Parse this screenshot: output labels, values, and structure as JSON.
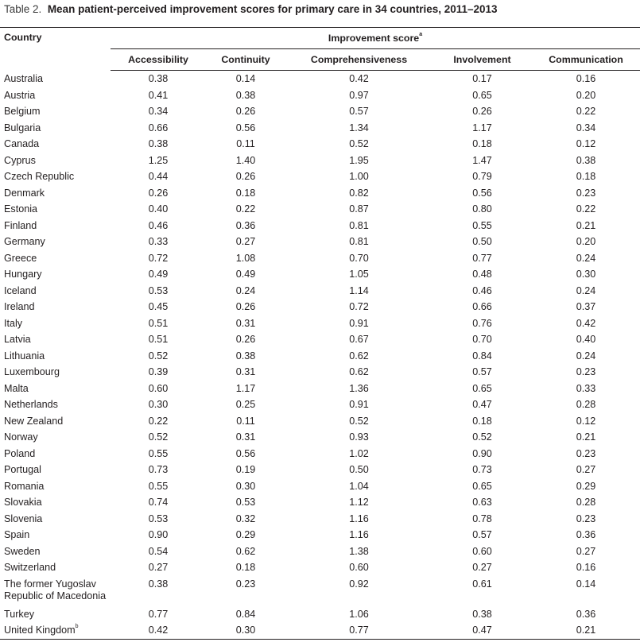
{
  "caption": {
    "label": "Table 2.",
    "title": "Mean patient-perceived improvement scores for primary care in 34 countries, 2011–2013"
  },
  "header": {
    "country": "Country",
    "group": "Improvement score",
    "group_note": "a",
    "columns": [
      "Accessibility",
      "Continuity",
      "Comprehensiveness",
      "Involvement",
      "Communication"
    ]
  },
  "rows": [
    {
      "country": "Australia",
      "values": [
        "0.38",
        "0.14",
        "0.42",
        "0.17",
        "0.16"
      ]
    },
    {
      "country": "Austria",
      "values": [
        "0.41",
        "0.38",
        "0.97",
        "0.65",
        "0.20"
      ]
    },
    {
      "country": "Belgium",
      "values": [
        "0.34",
        "0.26",
        "0.57",
        "0.26",
        "0.22"
      ]
    },
    {
      "country": "Bulgaria",
      "values": [
        "0.66",
        "0.56",
        "1.34",
        "1.17",
        "0.34"
      ]
    },
    {
      "country": "Canada",
      "values": [
        "0.38",
        "0.11",
        "0.52",
        "0.18",
        "0.12"
      ]
    },
    {
      "country": "Cyprus",
      "values": [
        "1.25",
        "1.40",
        "1.95",
        "1.47",
        "0.38"
      ]
    },
    {
      "country": "Czech Republic",
      "values": [
        "0.44",
        "0.26",
        "1.00",
        "0.79",
        "0.18"
      ]
    },
    {
      "country": "Denmark",
      "values": [
        "0.26",
        "0.18",
        "0.82",
        "0.56",
        "0.23"
      ]
    },
    {
      "country": "Estonia",
      "values": [
        "0.40",
        "0.22",
        "0.87",
        "0.80",
        "0.22"
      ]
    },
    {
      "country": "Finland",
      "values": [
        "0.46",
        "0.36",
        "0.81",
        "0.55",
        "0.21"
      ]
    },
    {
      "country": "Germany",
      "values": [
        "0.33",
        "0.27",
        "0.81",
        "0.50",
        "0.20"
      ]
    },
    {
      "country": "Greece",
      "values": [
        "0.72",
        "1.08",
        "0.70",
        "0.77",
        "0.24"
      ]
    },
    {
      "country": "Hungary",
      "values": [
        "0.49",
        "0.49",
        "1.05",
        "0.48",
        "0.30"
      ]
    },
    {
      "country": "Iceland",
      "values": [
        "0.53",
        "0.24",
        "1.14",
        "0.46",
        "0.24"
      ]
    },
    {
      "country": "Ireland",
      "values": [
        "0.45",
        "0.26",
        "0.72",
        "0.66",
        "0.37"
      ]
    },
    {
      "country": "Italy",
      "values": [
        "0.51",
        "0.31",
        "0.91",
        "0.76",
        "0.42"
      ]
    },
    {
      "country": "Latvia",
      "values": [
        "0.51",
        "0.26",
        "0.67",
        "0.70",
        "0.40"
      ]
    },
    {
      "country": "Lithuania",
      "values": [
        "0.52",
        "0.38",
        "0.62",
        "0.84",
        "0.24"
      ]
    },
    {
      "country": "Luxembourg",
      "values": [
        "0.39",
        "0.31",
        "0.62",
        "0.57",
        "0.23"
      ]
    },
    {
      "country": "Malta",
      "values": [
        "0.60",
        "1.17",
        "1.36",
        "0.65",
        "0.33"
      ]
    },
    {
      "country": "Netherlands",
      "values": [
        "0.30",
        "0.25",
        "0.91",
        "0.47",
        "0.28"
      ]
    },
    {
      "country": "New Zealand",
      "values": [
        "0.22",
        "0.11",
        "0.52",
        "0.18",
        "0.12"
      ]
    },
    {
      "country": "Norway",
      "values": [
        "0.52",
        "0.31",
        "0.93",
        "0.52",
        "0.21"
      ]
    },
    {
      "country": "Poland",
      "values": [
        "0.55",
        "0.56",
        "1.02",
        "0.90",
        "0.23"
      ]
    },
    {
      "country": "Portugal",
      "values": [
        "0.73",
        "0.19",
        "0.50",
        "0.73",
        "0.27"
      ]
    },
    {
      "country": "Romania",
      "values": [
        "0.55",
        "0.30",
        "1.04",
        "0.65",
        "0.29"
      ]
    },
    {
      "country": "Slovakia",
      "values": [
        "0.74",
        "0.53",
        "1.12",
        "0.63",
        "0.28"
      ]
    },
    {
      "country": "Slovenia",
      "values": [
        "0.53",
        "0.32",
        "1.16",
        "0.78",
        "0.23"
      ]
    },
    {
      "country": "Spain",
      "values": [
        "0.90",
        "0.29",
        "1.16",
        "0.57",
        "0.36"
      ]
    },
    {
      "country": "Sweden",
      "values": [
        "0.54",
        "0.62",
        "1.38",
        "0.60",
        "0.27"
      ]
    },
    {
      "country": "Switzerland",
      "values": [
        "0.27",
        "0.18",
        "0.60",
        "0.27",
        "0.16"
      ]
    },
    {
      "country": "The former Yugoslav Republic of Macedonia",
      "values": [
        "0.38",
        "0.23",
        "0.92",
        "0.61",
        "0.14"
      ]
    },
    {
      "country": "Turkey",
      "values": [
        "0.77",
        "0.84",
        "1.06",
        "0.38",
        "0.36"
      ]
    },
    {
      "country": "United Kingdom",
      "country_note": "b",
      "values": [
        "0.42",
        "0.30",
        "0.77",
        "0.47",
        "0.21"
      ]
    }
  ]
}
